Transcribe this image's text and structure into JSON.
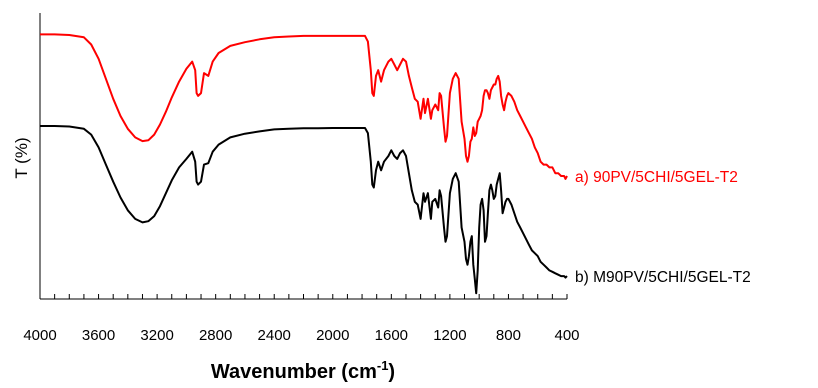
{
  "chart_data": {
    "type": "line",
    "xlabel": "Wavenumber (cm",
    "xlabel_sup": "-1",
    "xlabel_close": ")",
    "ylabel": "T (%)",
    "xlim": [
      4000,
      400
    ],
    "x_reversed": true,
    "ylim": [
      0,
      100
    ],
    "x_ticks": [
      "4000",
      "3600",
      "3200",
      "2800",
      "2400",
      "2000",
      "1600",
      "1200",
      "800",
      "400"
    ],
    "x_tick_values": [
      4000,
      3600,
      3200,
      2800,
      2400,
      2000,
      1600,
      1200,
      800,
      400
    ],
    "minor_tick_step": 100,
    "grid": false,
    "series": [
      {
        "name": "a) 90PV/5CHI/5GEL-T2",
        "color": "#ff0000",
        "points": [
          [
            4000,
            92.5
          ],
          [
            3900,
            92.5
          ],
          [
            3800,
            92.3
          ],
          [
            3700,
            91.5
          ],
          [
            3650,
            89
          ],
          [
            3600,
            84
          ],
          [
            3550,
            77
          ],
          [
            3500,
            70
          ],
          [
            3450,
            64
          ],
          [
            3400,
            59.5
          ],
          [
            3350,
            56.5
          ],
          [
            3300,
            55.2
          ],
          [
            3260,
            55.5
          ],
          [
            3220,
            57.5
          ],
          [
            3180,
            61
          ],
          [
            3140,
            65.5
          ],
          [
            3100,
            70.5
          ],
          [
            3050,
            76
          ],
          [
            3000,
            80.5
          ],
          [
            2960,
            83
          ],
          [
            2940,
            80
          ],
          [
            2930,
            72
          ],
          [
            2920,
            71
          ],
          [
            2900,
            72
          ],
          [
            2880,
            79
          ],
          [
            2850,
            78
          ],
          [
            2820,
            83
          ],
          [
            2780,
            86
          ],
          [
            2700,
            88.5
          ],
          [
            2600,
            89.8
          ],
          [
            2500,
            90.8
          ],
          [
            2400,
            91.5
          ],
          [
            2300,
            91.8
          ],
          [
            2200,
            92
          ],
          [
            2100,
            92
          ],
          [
            2000,
            92
          ],
          [
            1900,
            92
          ],
          [
            1780,
            92
          ],
          [
            1760,
            90
          ],
          [
            1740,
            80
          ],
          [
            1730,
            72
          ],
          [
            1720,
            71
          ],
          [
            1705,
            78
          ],
          [
            1690,
            80
          ],
          [
            1670,
            76
          ],
          [
            1650,
            80
          ],
          [
            1620,
            83
          ],
          [
            1600,
            84
          ],
          [
            1580,
            82
          ],
          [
            1560,
            80
          ],
          [
            1540,
            82
          ],
          [
            1520,
            84
          ],
          [
            1500,
            83
          ],
          [
            1480,
            78
          ],
          [
            1460,
            74
          ],
          [
            1440,
            70
          ],
          [
            1420,
            69
          ],
          [
            1400,
            63
          ],
          [
            1380,
            70
          ],
          [
            1370,
            65
          ],
          [
            1350,
            70
          ],
          [
            1330,
            63
          ],
          [
            1320,
            66
          ],
          [
            1300,
            68
          ],
          [
            1280,
            66
          ],
          [
            1270,
            72
          ],
          [
            1260,
            71
          ],
          [
            1240,
            60
          ],
          [
            1230,
            55
          ],
          [
            1220,
            57
          ],
          [
            1200,
            72
          ],
          [
            1180,
            77
          ],
          [
            1160,
            79
          ],
          [
            1140,
            77
          ],
          [
            1120,
            62
          ],
          [
            1100,
            56
          ],
          [
            1090,
            50
          ],
          [
            1080,
            48
          ],
          [
            1070,
            50
          ],
          [
            1060,
            55
          ],
          [
            1050,
            56
          ],
          [
            1040,
            60
          ],
          [
            1030,
            57
          ],
          [
            1020,
            58
          ],
          [
            1010,
            62
          ],
          [
            1000,
            63
          ],
          [
            990,
            64
          ],
          [
            980,
            66
          ],
          [
            970,
            71
          ],
          [
            960,
            73
          ],
          [
            950,
            73
          ],
          [
            940,
            72
          ],
          [
            930,
            70
          ],
          [
            920,
            73
          ],
          [
            900,
            75
          ],
          [
            890,
            75
          ],
          [
            880,
            77
          ],
          [
            870,
            78
          ],
          [
            860,
            76
          ],
          [
            850,
            71
          ],
          [
            840,
            68
          ],
          [
            830,
            66
          ],
          [
            820,
            69
          ],
          [
            810,
            71
          ],
          [
            800,
            72
          ],
          [
            780,
            71
          ],
          [
            760,
            69
          ],
          [
            740,
            66
          ],
          [
            720,
            64
          ],
          [
            700,
            62
          ],
          [
            680,
            60
          ],
          [
            660,
            58
          ],
          [
            640,
            56
          ],
          [
            620,
            53
          ],
          [
            600,
            51
          ],
          [
            580,
            48
          ],
          [
            560,
            47
          ],
          [
            540,
            47
          ],
          [
            520,
            46
          ],
          [
            500,
            46
          ],
          [
            480,
            44
          ],
          [
            460,
            44
          ],
          [
            440,
            43
          ],
          [
            420,
            43
          ],
          [
            410,
            42
          ],
          [
            400,
            43
          ]
        ]
      },
      {
        "name": "b) M90PV/5CHI/5GEL-T2",
        "color": "#000000",
        "points": [
          [
            4000,
            60.5
          ],
          [
            3900,
            60.5
          ],
          [
            3800,
            60.3
          ],
          [
            3700,
            59.5
          ],
          [
            3650,
            57.5
          ],
          [
            3600,
            53
          ],
          [
            3550,
            47
          ],
          [
            3500,
            41
          ],
          [
            3450,
            35.5
          ],
          [
            3400,
            31
          ],
          [
            3350,
            28
          ],
          [
            3300,
            26.8
          ],
          [
            3260,
            27.2
          ],
          [
            3220,
            29
          ],
          [
            3180,
            32.5
          ],
          [
            3140,
            37
          ],
          [
            3100,
            41.5
          ],
          [
            3050,
            46
          ],
          [
            3000,
            49
          ],
          [
            2960,
            51.5
          ],
          [
            2940,
            48
          ],
          [
            2930,
            41
          ],
          [
            2920,
            40
          ],
          [
            2900,
            41
          ],
          [
            2880,
            47
          ],
          [
            2850,
            47.5
          ],
          [
            2820,
            51.5
          ],
          [
            2780,
            54
          ],
          [
            2700,
            56.5
          ],
          [
            2600,
            57.8
          ],
          [
            2500,
            58.6
          ],
          [
            2400,
            59.3
          ],
          [
            2300,
            59.5
          ],
          [
            2200,
            59.7
          ],
          [
            2100,
            59.7
          ],
          [
            2000,
            59.8
          ],
          [
            1900,
            59.8
          ],
          [
            1780,
            59.8
          ],
          [
            1760,
            58
          ],
          [
            1740,
            48
          ],
          [
            1730,
            40
          ],
          [
            1720,
            39
          ],
          [
            1705,
            45
          ],
          [
            1690,
            48
          ],
          [
            1670,
            45
          ],
          [
            1650,
            48
          ],
          [
            1620,
            50
          ],
          [
            1600,
            52
          ],
          [
            1580,
            50
          ],
          [
            1560,
            49
          ],
          [
            1540,
            51
          ],
          [
            1520,
            52
          ],
          [
            1500,
            50
          ],
          [
            1480,
            44
          ],
          [
            1460,
            38
          ],
          [
            1440,
            34
          ],
          [
            1420,
            33
          ],
          [
            1400,
            28
          ],
          [
            1380,
            37
          ],
          [
            1370,
            34
          ],
          [
            1350,
            37
          ],
          [
            1330,
            28
          ],
          [
            1320,
            34
          ],
          [
            1300,
            35
          ],
          [
            1280,
            32
          ],
          [
            1270,
            38
          ],
          [
            1260,
            36
          ],
          [
            1240,
            25
          ],
          [
            1230,
            20
          ],
          [
            1220,
            22
          ],
          [
            1200,
            37
          ],
          [
            1180,
            42
          ],
          [
            1160,
            44
          ],
          [
            1140,
            41
          ],
          [
            1120,
            25
          ],
          [
            1100,
            20
          ],
          [
            1090,
            14
          ],
          [
            1080,
            12
          ],
          [
            1070,
            15
          ],
          [
            1060,
            20
          ],
          [
            1050,
            22
          ],
          [
            1040,
            12
          ],
          [
            1030,
            7
          ],
          [
            1020,
            2
          ],
          [
            1010,
            10
          ],
          [
            1000,
            25
          ],
          [
            990,
            33
          ],
          [
            980,
            35
          ],
          [
            970,
            31
          ],
          [
            960,
            20
          ],
          [
            950,
            22
          ],
          [
            940,
            30
          ],
          [
            930,
            38
          ],
          [
            920,
            40
          ],
          [
            910,
            38
          ],
          [
            900,
            35
          ],
          [
            890,
            36
          ],
          [
            880,
            40
          ],
          [
            870,
            42
          ],
          [
            860,
            44
          ],
          [
            850,
            38
          ],
          [
            840,
            30
          ],
          [
            830,
            32
          ],
          [
            820,
            34
          ],
          [
            810,
            35
          ],
          [
            800,
            35
          ],
          [
            780,
            33
          ],
          [
            760,
            30
          ],
          [
            740,
            27
          ],
          [
            720,
            25
          ],
          [
            700,
            23
          ],
          [
            680,
            21
          ],
          [
            660,
            19
          ],
          [
            640,
            17
          ],
          [
            620,
            16
          ],
          [
            600,
            15
          ],
          [
            580,
            13
          ],
          [
            560,
            12
          ],
          [
            540,
            11
          ],
          [
            520,
            10
          ],
          [
            500,
            9.5
          ],
          [
            480,
            9
          ],
          [
            460,
            8.5
          ],
          [
            440,
            8
          ],
          [
            420,
            8
          ],
          [
            410,
            7.5
          ],
          [
            400,
            8
          ]
        ]
      }
    ]
  }
}
